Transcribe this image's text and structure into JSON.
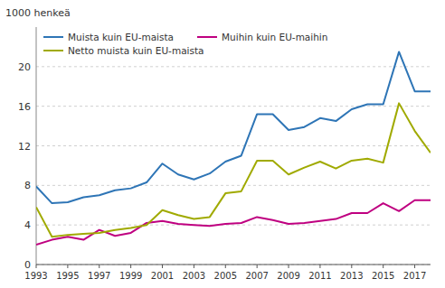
{
  "chart_data": {
    "type": "line",
    "ylabel": "1000 henkeä",
    "x": [
      1993,
      1994,
      1995,
      1996,
      1997,
      1998,
      1999,
      2000,
      2001,
      2002,
      2003,
      2004,
      2005,
      2006,
      2007,
      2008,
      2009,
      2010,
      2011,
      2012,
      2013,
      2014,
      2015,
      2016,
      2017,
      2018
    ],
    "series": [
      {
        "name": "Muista kuin EU-maista",
        "color": "#2e75b6",
        "values": [
          7.9,
          6.2,
          6.3,
          6.8,
          7.0,
          7.5,
          7.7,
          8.3,
          10.2,
          9.1,
          8.6,
          9.2,
          10.4,
          11.0,
          15.2,
          15.2,
          13.6,
          13.9,
          14.8,
          14.5,
          15.7,
          16.2,
          16.2,
          21.5,
          17.5,
          17.5
        ]
      },
      {
        "name": "Muihin kuin EU-maihin",
        "color": "#bf0080",
        "values": [
          2.0,
          2.5,
          2.8,
          2.5,
          3.5,
          2.9,
          3.2,
          4.2,
          4.4,
          4.1,
          4.0,
          3.9,
          4.1,
          4.2,
          4.8,
          4.5,
          4.1,
          4.2,
          4.4,
          4.6,
          5.2,
          5.2,
          6.2,
          5.4,
          6.5,
          6.5
        ]
      },
      {
        "name": "Netto muista kuin EU-maista",
        "color": "#a0aa00",
        "values": [
          5.8,
          2.8,
          3.0,
          3.1,
          3.2,
          3.5,
          3.7,
          4.0,
          5.5,
          5.0,
          4.6,
          4.8,
          7.2,
          7.4,
          10.5,
          10.5,
          9.1,
          9.8,
          10.4,
          9.7,
          10.5,
          10.7,
          10.3,
          16.3,
          13.5,
          11.3
        ]
      }
    ],
    "xlim": [
      1993,
      2018
    ],
    "xticks": [
      1993,
      1995,
      1997,
      1999,
      2001,
      2003,
      2005,
      2007,
      2009,
      2011,
      2013,
      2015,
      2017
    ],
    "ylim": [
      0,
      24
    ],
    "yticks": [
      0,
      4,
      8,
      12,
      16,
      20
    ],
    "grid": true,
    "legend": "upper left"
  }
}
